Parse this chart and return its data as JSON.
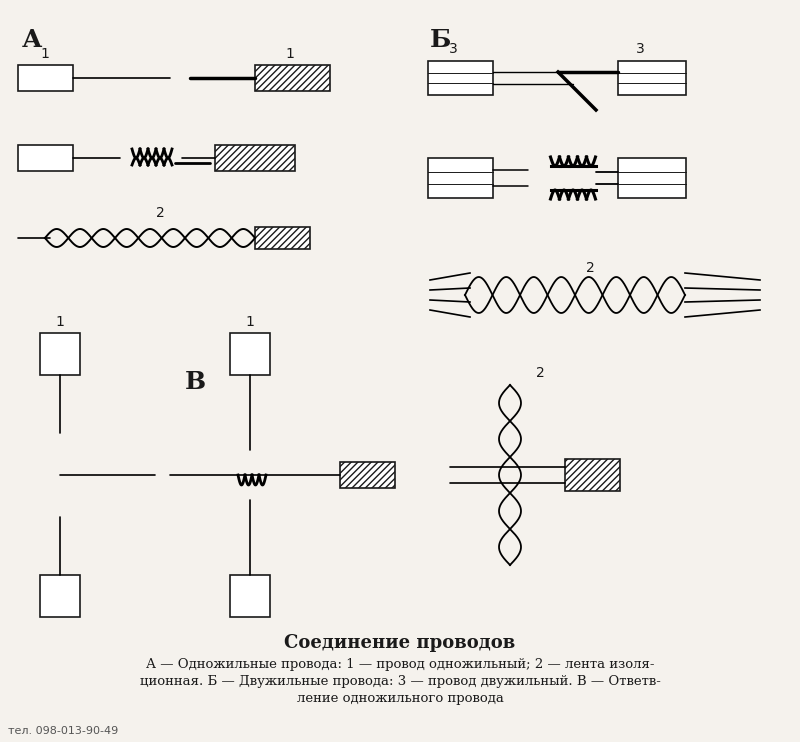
{
  "title": "Соединение проводов",
  "caption_line1": "А — Одножильные провода: 1 — провод одножильный; 2 — лента изоля-",
  "caption_line2": "ционная. Б — Двужильные провода: 3 — провод двужильный. В — Ответв-",
  "caption_line3": "ление одножильного провода",
  "phone": "тел. 098-013-90-49",
  "label_A": "А",
  "label_B": "Б",
  "label_V": "В",
  "label_1": "1",
  "label_2": "2",
  "label_3": "3",
  "bg_color": "#f5f2ed",
  "line_color": "#1a1a1a",
  "fig_width": 8.0,
  "fig_height": 7.42
}
